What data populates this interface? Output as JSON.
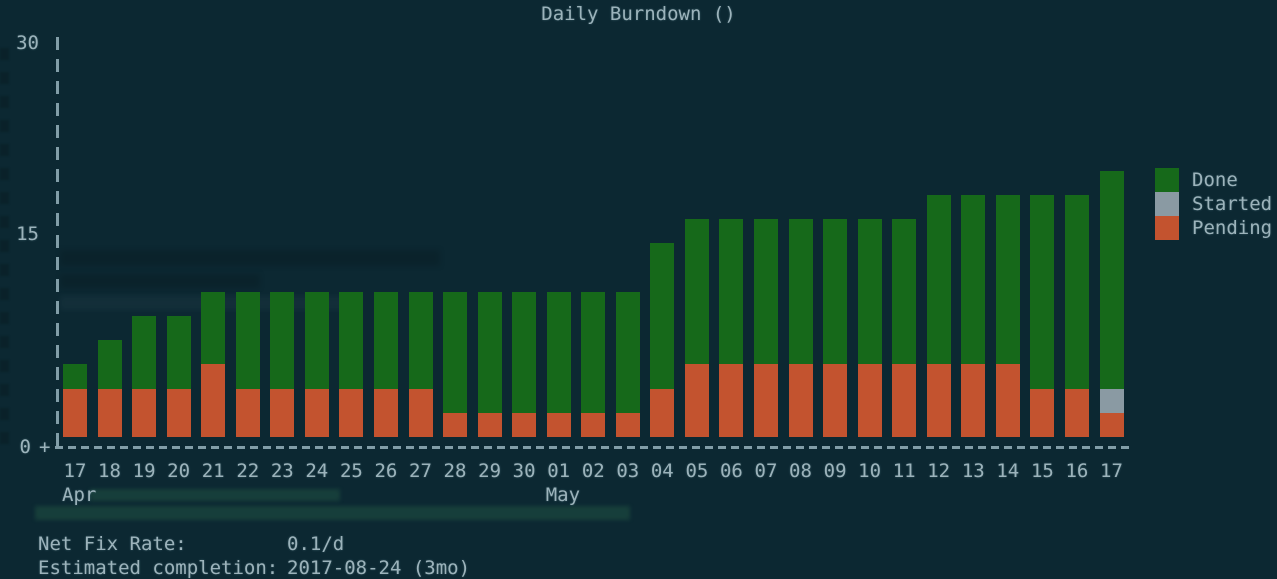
{
  "title": "Daily Burndown ()",
  "y_axis": {
    "ticks": [
      "30",
      "15",
      "0"
    ]
  },
  "x_axis": {
    "origin_glyph": "+",
    "day_labels": [
      "17",
      "18",
      "19",
      "20",
      "21",
      "22",
      "23",
      "24",
      "25",
      "26",
      "27",
      "28",
      "29",
      "30",
      "01",
      "02",
      "03",
      "04",
      "05",
      "06",
      "07",
      "08",
      "09",
      "10",
      "11",
      "12",
      "13",
      "14",
      "15",
      "16",
      "17"
    ],
    "month_labels": [
      {
        "label": "Apr",
        "bar_index": 0
      },
      {
        "label": "May",
        "bar_index": 14
      }
    ]
  },
  "legend": {
    "position": "right",
    "items": [
      {
        "label": "Done",
        "color": "#16691a"
      },
      {
        "label": "Started",
        "color": "#8a9aa3"
      },
      {
        "label": "Pending",
        "color": "#c3532f"
      }
    ]
  },
  "stats": [
    {
      "label": "Net Fix Rate:",
      "value": "0.1/d"
    },
    {
      "label": "Estimated completion:",
      "value": "2017-08-24 (3mo)"
    }
  ],
  "colors": {
    "background": "#0c2832",
    "text": "#9cb3bb",
    "axis": "#96b2bc",
    "done": "#16691a",
    "started": "#8a9aa3",
    "pending": "#c3532f"
  },
  "chart_data": {
    "type": "bar",
    "stacked": true,
    "title": "Daily Burndown ()",
    "xlabel": "",
    "ylabel": "",
    "ylim": [
      0,
      30
    ],
    "y_ticks": [
      0,
      15,
      30
    ],
    "grid": false,
    "legend_position": "right",
    "stack_order_bottom_to_top": [
      "Pending",
      "Started",
      "Done"
    ],
    "categories": [
      "Apr 17",
      "Apr 18",
      "Apr 19",
      "Apr 20",
      "Apr 21",
      "Apr 22",
      "Apr 23",
      "Apr 24",
      "Apr 25",
      "Apr 26",
      "Apr 27",
      "Apr 28",
      "Apr 29",
      "Apr 30",
      "May 01",
      "May 02",
      "May 03",
      "May 04",
      "May 05",
      "May 06",
      "May 07",
      "May 08",
      "May 09",
      "May 10",
      "May 11",
      "May 12",
      "May 13",
      "May 14",
      "May 15",
      "May 16",
      "May 17"
    ],
    "series": [
      {
        "name": "Pending",
        "color": "#c3532f",
        "values": [
          4,
          4,
          4,
          4,
          6,
          4,
          4,
          4,
          4,
          4,
          4,
          2,
          2,
          2,
          2,
          2,
          2,
          4,
          6,
          6,
          6,
          6,
          6,
          6,
          6,
          6,
          6,
          6,
          4,
          4,
          2
        ]
      },
      {
        "name": "Started",
        "color": "#8a9aa3",
        "values": [
          0,
          0,
          0,
          0,
          0,
          0,
          0,
          0,
          0,
          0,
          0,
          0,
          0,
          0,
          0,
          0,
          0,
          0,
          0,
          0,
          0,
          0,
          0,
          0,
          0,
          0,
          0,
          0,
          0,
          0,
          2
        ]
      },
      {
        "name": "Done",
        "color": "#16691a",
        "values": [
          2,
          4,
          6,
          6,
          6,
          8,
          8,
          8,
          8,
          8,
          8,
          10,
          10,
          10,
          10,
          10,
          10,
          12,
          12,
          12,
          12,
          12,
          12,
          12,
          12,
          14,
          14,
          14,
          16,
          16,
          18
        ]
      }
    ],
    "totals": [
      6,
      8,
      10,
      10,
      12,
      12,
      12,
      12,
      12,
      12,
      12,
      12,
      12,
      12,
      12,
      12,
      12,
      16,
      18,
      18,
      18,
      18,
      18,
      18,
      18,
      20,
      20,
      20,
      20,
      20,
      22
    ]
  }
}
